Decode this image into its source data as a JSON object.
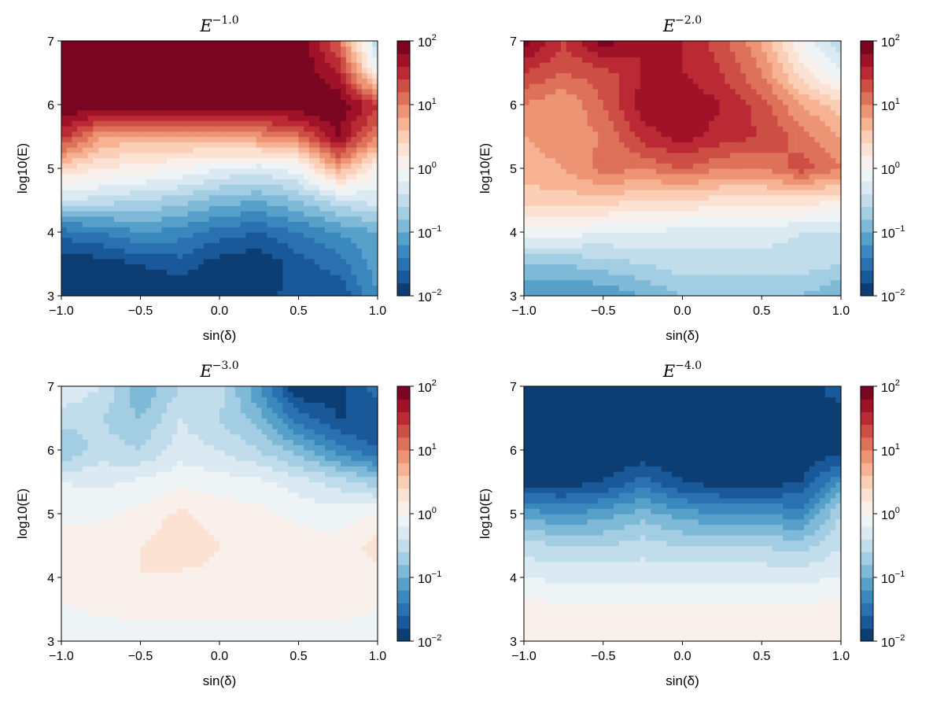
{
  "chart_data": [
    {
      "type": "heatmap",
      "title": "E^{-1.0}",
      "title_base": "E",
      "title_exp": "−1.0",
      "xlabel": "sin(δ)",
      "ylabel": "log10(E)",
      "xlim": [
        -1.0,
        1.0
      ],
      "ylim": [
        3,
        7
      ],
      "x_ticks": [
        "−1.0",
        "−0.5",
        "0.0",
        "0.5",
        "1.0"
      ],
      "y_ticks": [
        "3",
        "4",
        "5",
        "6",
        "7"
      ],
      "x": [
        -1.0,
        -0.75,
        -0.5,
        -0.25,
        0.0,
        0.25,
        0.5,
        0.75,
        1.0
      ],
      "y": [
        3.0,
        3.5,
        4.0,
        4.5,
        5.0,
        5.5,
        6.0,
        6.5,
        7.0
      ],
      "log10_values": [
        [
          -2.0,
          -2.0,
          -2.0,
          -2.0,
          -2.0,
          -2.0,
          -1.6,
          -1.8,
          -1.2
        ],
        [
          -2.0,
          -1.9,
          -1.8,
          -1.7,
          -1.9,
          -2.0,
          -1.7,
          -1.5,
          -1.1
        ],
        [
          -1.5,
          -1.4,
          -1.2,
          -1.3,
          -1.5,
          -1.6,
          -1.4,
          -1.2,
          -1.0
        ],
        [
          -0.4,
          -0.5,
          -0.6,
          -0.7,
          -0.9,
          -1.0,
          -0.8,
          -0.5,
          -0.3
        ],
        [
          0.4,
          0.2,
          0.1,
          0.0,
          -0.2,
          -0.3,
          -0.1,
          0.8,
          0.0
        ],
        [
          1.5,
          0.8,
          0.7,
          0.7,
          0.8,
          0.9,
          1.1,
          1.8,
          1.0
        ],
        [
          2.0,
          2.0,
          2.0,
          2.0,
          2.0,
          2.0,
          2.0,
          2.0,
          1.4
        ],
        [
          2.0,
          2.0,
          2.0,
          2.0,
          2.0,
          2.0,
          2.0,
          1.6,
          0.0
        ],
        [
          2.0,
          2.0,
          2.0,
          2.0,
          2.0,
          2.0,
          2.0,
          1.2,
          -0.6
        ]
      ],
      "colorbar": {
        "scale": "log",
        "min": 0.01,
        "max": 100,
        "levels": 20,
        "ticks_base": "10",
        "ticks_exp": [
          "−2",
          "−1",
          "0",
          "1",
          "2"
        ]
      }
    },
    {
      "type": "heatmap",
      "title": "E^{-2.0}",
      "title_base": "E",
      "title_exp": "−2.0",
      "xlabel": "sin(δ)",
      "ylabel": "log10(E)",
      "xlim": [
        -1.0,
        1.0
      ],
      "ylim": [
        3,
        7
      ],
      "x_ticks": [
        "−1.0",
        "−0.5",
        "0.0",
        "0.5",
        "1.0"
      ],
      "y_ticks": [
        "3",
        "4",
        "5",
        "6",
        "7"
      ],
      "x": [
        -1.0,
        -0.75,
        -0.5,
        -0.25,
        0.0,
        0.25,
        0.5,
        0.75,
        1.0
      ],
      "y": [
        3.0,
        3.5,
        4.0,
        4.5,
        5.0,
        5.5,
        6.0,
        6.5,
        7.0
      ],
      "log10_values": [
        [
          -1.2,
          -1.2,
          -1.2,
          -1.0,
          -0.8,
          -0.8,
          -0.8,
          -0.8,
          -1.0
        ],
        [
          -0.8,
          -0.8,
          -0.7,
          -0.6,
          -0.5,
          -0.5,
          -0.5,
          -0.5,
          -0.6
        ],
        [
          -0.1,
          -0.1,
          -0.2,
          -0.2,
          -0.3,
          -0.3,
          -0.3,
          -0.4,
          -0.4
        ],
        [
          0.5,
          0.5,
          0.5,
          0.4,
          0.4,
          0.3,
          0.3,
          0.3,
          0.2
        ],
        [
          0.7,
          0.8,
          1.1,
          1.0,
          1.2,
          1.0,
          1.0,
          1.3,
          1.0
        ],
        [
          0.8,
          0.9,
          1.0,
          1.5,
          1.7,
          1.5,
          1.4,
          1.1,
          0.8
        ],
        [
          1.0,
          0.8,
          1.2,
          1.7,
          1.8,
          1.6,
          1.3,
          0.8,
          0.5
        ],
        [
          1.4,
          1.2,
          1.3,
          1.6,
          1.6,
          1.4,
          1.0,
          0.3,
          -0.2
        ],
        [
          1.9,
          1.4,
          1.9,
          1.6,
          1.6,
          1.3,
          0.8,
          0.0,
          -0.6
        ]
      ],
      "colorbar": {
        "scale": "log",
        "min": 0.01,
        "max": 100,
        "levels": 20,
        "ticks_base": "10",
        "ticks_exp": [
          "−2",
          "−1",
          "0",
          "1",
          "2"
        ]
      }
    },
    {
      "type": "heatmap",
      "title": "E^{-3.0}",
      "title_base": "E",
      "title_exp": "−3.0",
      "xlabel": "sin(δ)",
      "ylabel": "log10(E)",
      "xlim": [
        -1.0,
        1.0
      ],
      "ylim": [
        3,
        7
      ],
      "x_ticks": [
        "−1.0",
        "−0.5",
        "0.0",
        "0.5",
        "1.0"
      ],
      "y_ticks": [
        "3",
        "4",
        "5",
        "6",
        "7"
      ],
      "x": [
        -1.0,
        -0.75,
        -0.5,
        -0.25,
        0.0,
        0.25,
        0.5,
        0.75,
        1.0
      ],
      "y": [
        3.0,
        3.5,
        4.0,
        4.5,
        5.0,
        5.5,
        6.0,
        6.5,
        7.0
      ],
      "log10_values": [
        [
          -0.1,
          -0.2,
          -0.1,
          -0.1,
          -0.1,
          -0.1,
          -0.1,
          -0.1,
          -0.1
        ],
        [
          -0.05,
          0.05,
          0.05,
          0.05,
          0.05,
          0.05,
          0.05,
          0.05,
          0.0
        ],
        [
          0.2,
          0.15,
          0.2,
          0.15,
          0.15,
          0.15,
          0.1,
          0.1,
          0.1
        ],
        [
          0.1,
          0.15,
          0.2,
          0.35,
          0.2,
          0.15,
          0.1,
          0.05,
          0.3
        ],
        [
          -0.05,
          -0.05,
          0.05,
          0.25,
          0.1,
          0.05,
          -0.05,
          -0.1,
          0.0
        ],
        [
          -0.2,
          -0.25,
          -0.15,
          -0.05,
          -0.1,
          -0.15,
          -0.3,
          -0.5,
          -0.7
        ],
        [
          -0.8,
          -0.5,
          -0.6,
          -0.3,
          -0.4,
          -0.6,
          -0.9,
          -1.3,
          -1.6
        ],
        [
          -0.5,
          -0.6,
          -0.8,
          -0.4,
          -0.6,
          -0.9,
          -1.5,
          -1.8,
          -1.8
        ],
        [
          -0.2,
          -0.4,
          -1.0,
          -0.6,
          -0.5,
          -1.2,
          -2.0,
          -1.9,
          -1.5
        ]
      ],
      "colorbar": {
        "scale": "log",
        "min": 0.01,
        "max": 100,
        "levels": 20,
        "ticks_base": "10",
        "ticks_exp": [
          "−2",
          "−1",
          "0",
          "1",
          "2"
        ]
      }
    },
    {
      "type": "heatmap",
      "title": "E^{-4.0}",
      "title_base": "E",
      "title_exp": "−4.0",
      "xlabel": "sin(δ)",
      "ylabel": "log10(E)",
      "xlim": [
        -1.0,
        1.0
      ],
      "ylim": [
        3,
        7
      ],
      "x_ticks": [
        "−1.0",
        "−0.5",
        "0.0",
        "0.5",
        "1.0"
      ],
      "y_ticks": [
        "3",
        "4",
        "5",
        "6",
        "7"
      ],
      "x": [
        -1.0,
        -0.75,
        -0.5,
        -0.25,
        0.0,
        0.25,
        0.5,
        0.75,
        1.0
      ],
      "y": [
        3.0,
        3.5,
        4.0,
        4.5,
        5.0,
        5.5,
        6.0,
        6.5,
        7.0
      ],
      "log10_values": [
        [
          0.15,
          0.1,
          0.05,
          0.05,
          0.05,
          0.05,
          0.05,
          0.05,
          0.1
        ],
        [
          0.1,
          0.05,
          0.05,
          0.05,
          0.05,
          0.05,
          0.05,
          0.05,
          0.1
        ],
        [
          -0.2,
          -0.25,
          -0.25,
          -0.25,
          -0.25,
          -0.25,
          -0.25,
          -0.25,
          -0.2
        ],
        [
          -0.5,
          -0.6,
          -0.6,
          -0.5,
          -0.6,
          -0.6,
          -0.6,
          -0.7,
          -0.4
        ],
        [
          -1.1,
          -1.2,
          -1.1,
          -0.9,
          -1.1,
          -1.2,
          -1.2,
          -1.3,
          -0.6
        ],
        [
          -1.9,
          -1.9,
          -1.8,
          -1.5,
          -1.8,
          -1.9,
          -1.9,
          -1.8,
          -1.2
        ],
        [
          -2.0,
          -2.0,
          -2.0,
          -2.0,
          -2.0,
          -2.0,
          -2.0,
          -2.0,
          -1.9
        ],
        [
          -2.0,
          -2.0,
          -2.0,
          -2.0,
          -2.0,
          -2.0,
          -2.0,
          -2.0,
          -2.0
        ],
        [
          -2.0,
          -2.0,
          -2.0,
          -2.0,
          -2.0,
          -2.0,
          -2.0,
          -2.0,
          -1.6
        ]
      ],
      "colorbar": {
        "scale": "log",
        "min": 0.01,
        "max": 100,
        "levels": 20,
        "ticks_base": "10",
        "ticks_exp": [
          "−2",
          "−1",
          "0",
          "1",
          "2"
        ]
      }
    }
  ]
}
